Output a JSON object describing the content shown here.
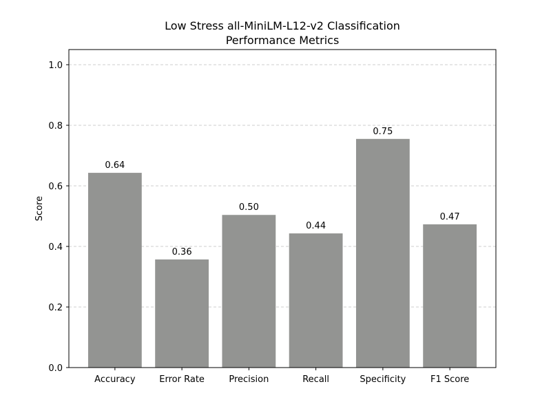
{
  "chart_data": {
    "type": "bar",
    "title_lines": [
      "Low Stress all-MiniLM-L12-v2 Classification",
      "Performance Metrics"
    ],
    "xlabel": "",
    "ylabel": "Score",
    "categories": [
      "Accuracy",
      "Error Rate",
      "Precision",
      "Recall",
      "Specificity",
      "F1 Score"
    ],
    "values": [
      0.643,
      0.357,
      0.504,
      0.443,
      0.755,
      0.473
    ],
    "value_labels": [
      "0.64",
      "0.36",
      "0.50",
      "0.44",
      "0.75",
      "0.47"
    ],
    "ylim": [
      0,
      1.05
    ],
    "yticks": [
      0.0,
      0.2,
      0.4,
      0.6,
      0.8,
      1.0
    ],
    "ytick_labels": [
      "0.0",
      "0.2",
      "0.4",
      "0.6",
      "0.8",
      "1.0"
    ],
    "bar_color": "#939492",
    "grid": "y-dashed",
    "legend": "none"
  }
}
